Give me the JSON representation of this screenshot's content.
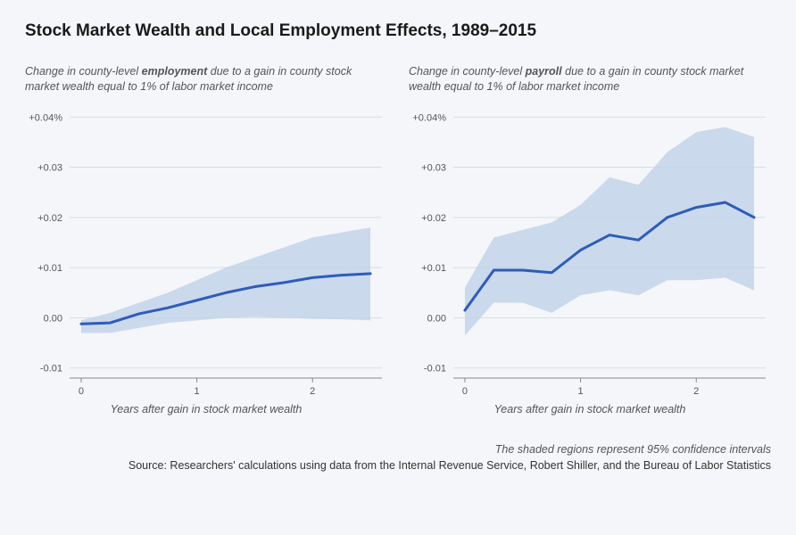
{
  "title": "Stock Market Wealth and Local Employment Effects, 1989–2015",
  "footer": {
    "note": "The shaded regions represent 95% confidence intervals",
    "source": "Source: Researchers' calculations using data from the Internal Revenue Service, Robert Shiller, and the Bureau of Labor Statistics"
  },
  "charts": [
    {
      "subtitle_pre": "Change in county-level ",
      "subtitle_bold": "employment",
      "subtitle_post": " due to a gain in county stock market wealth equal to 1% of labor market income",
      "xaxis_title": "Years after gain in stock market wealth",
      "type": "line_with_band",
      "xlim": [
        -0.1,
        2.6
      ],
      "ylim": [
        -0.012,
        0.042
      ],
      "yticks": [
        -0.01,
        0.0,
        0.01,
        0.02,
        0.03,
        0.04
      ],
      "ytick_labels": [
        "-0.01",
        "0.00",
        "+0.01",
        "+0.02",
        "+0.03",
        "+0.04%"
      ],
      "xticks": [
        0,
        1,
        2
      ],
      "xtick_labels": [
        "0",
        "1",
        "2"
      ],
      "x": [
        0.0,
        0.25,
        0.5,
        0.75,
        1.0,
        1.25,
        1.5,
        1.75,
        2.0,
        2.25,
        2.5
      ],
      "line": [
        -0.0012,
        -0.001,
        0.0008,
        0.002,
        0.0035,
        0.005,
        0.0062,
        0.007,
        0.008,
        0.0085,
        0.0088
      ],
      "upper": [
        -0.0005,
        0.001,
        0.003,
        0.005,
        0.0075,
        0.01,
        0.012,
        0.014,
        0.016,
        0.017,
        0.018
      ],
      "lower": [
        -0.003,
        -0.003,
        -0.002,
        -0.001,
        -0.0005,
        0.0,
        0.0002,
        0.0,
        -0.0002,
        -0.0003,
        -0.0005
      ],
      "line_color": "#2e5cb8",
      "band_color": "#c2d3ea",
      "line_width": 3,
      "grid_color": "#d8dde4",
      "axis_color": "#888",
      "tick_font_size": 11,
      "background": "#f4f6f9"
    },
    {
      "subtitle_pre": "Change in county-level ",
      "subtitle_bold": "payroll",
      "subtitle_post": " due to a gain in county stock market wealth equal to 1% of labor market income",
      "xaxis_title": "Years after gain in stock market wealth",
      "type": "line_with_band",
      "xlim": [
        -0.1,
        2.6
      ],
      "ylim": [
        -0.012,
        0.042
      ],
      "yticks": [
        -0.01,
        0.0,
        0.01,
        0.02,
        0.03,
        0.04
      ],
      "ytick_labels": [
        "-0.01",
        "0.00",
        "+0.01",
        "+0.02",
        "+0.03",
        "+0.04%"
      ],
      "xticks": [
        0,
        1,
        2
      ],
      "xtick_labels": [
        "0",
        "1",
        "2"
      ],
      "x": [
        0.0,
        0.25,
        0.5,
        0.75,
        1.0,
        1.25,
        1.5,
        1.75,
        2.0,
        2.25,
        2.5
      ],
      "line": [
        0.0015,
        0.0095,
        0.0095,
        0.009,
        0.0135,
        0.0165,
        0.0155,
        0.02,
        0.022,
        0.023,
        0.02
      ],
      "upper": [
        0.006,
        0.016,
        0.0175,
        0.019,
        0.0225,
        0.028,
        0.0265,
        0.033,
        0.037,
        0.038,
        0.036
      ],
      "lower": [
        -0.0035,
        0.003,
        0.003,
        0.001,
        0.0045,
        0.0055,
        0.0045,
        0.0075,
        0.0075,
        0.008,
        0.0055
      ],
      "line_color": "#2e5cb8",
      "band_color": "#c2d3ea",
      "line_width": 3,
      "grid_color": "#d8dde4",
      "axis_color": "#888",
      "tick_font_size": 11,
      "background": "#f4f6f9"
    }
  ]
}
